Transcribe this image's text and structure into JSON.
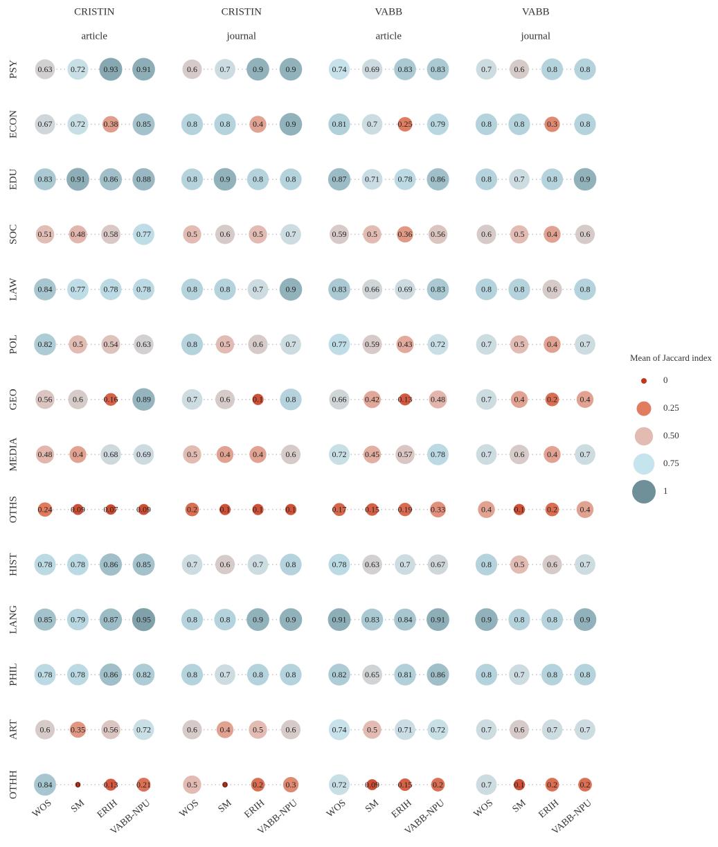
{
  "chart_data": {
    "type": "bubble",
    "facets": [
      {
        "title": "CRISTIN",
        "subtitle": "article",
        "values": [
          [
            0.63,
            0.72,
            0.93,
            0.91
          ],
          [
            0.67,
            0.72,
            0.38,
            0.85
          ],
          [
            0.83,
            0.91,
            0.86,
            0.88
          ],
          [
            0.51,
            0.48,
            0.58,
            0.77
          ],
          [
            0.84,
            0.77,
            0.78,
            0.78
          ],
          [
            0.82,
            0.5,
            0.54,
            0.63
          ],
          [
            0.56,
            0.6,
            0.16,
            0.89
          ],
          [
            0.48,
            0.4,
            0.68,
            0.69
          ],
          [
            0.24,
            0.09,
            0.07,
            0.09
          ],
          [
            0.78,
            0.78,
            0.86,
            0.85
          ],
          [
            0.85,
            0.79,
            0.87,
            0.95
          ],
          [
            0.78,
            0.78,
            0.86,
            0.82
          ],
          [
            0.6,
            0.35,
            0.56,
            0.72
          ],
          [
            0.84,
            0,
            0.13,
            0.21
          ]
        ]
      },
      {
        "title": "CRISTIN",
        "subtitle": "journal",
        "values": [
          [
            0.6,
            0.7,
            0.9,
            0.9
          ],
          [
            0.8,
            0.8,
            0.4,
            0.9
          ],
          [
            0.8,
            0.9,
            0.8,
            0.8
          ],
          [
            0.5,
            0.6,
            0.5,
            0.7
          ],
          [
            0.8,
            0.8,
            0.7,
            0.9
          ],
          [
            0.8,
            0.5,
            0.6,
            0.7
          ],
          [
            0.7,
            0.6,
            0.1,
            0.8
          ],
          [
            0.5,
            0.4,
            0.4,
            0.6
          ],
          [
            0.2,
            0.1,
            0.1,
            0.1
          ],
          [
            0.7,
            0.6,
            0.7,
            0.8
          ],
          [
            0.8,
            0.8,
            0.9,
            0.9
          ],
          [
            0.8,
            0.7,
            0.8,
            0.8
          ],
          [
            0.6,
            0.4,
            0.5,
            0.6
          ],
          [
            0.5,
            0,
            0.2,
            0.3
          ]
        ]
      },
      {
        "title": "VABB",
        "subtitle": "article",
        "values": [
          [
            0.74,
            0.69,
            0.83,
            0.83
          ],
          [
            0.81,
            0.7,
            0.25,
            0.79
          ],
          [
            0.87,
            0.71,
            0.78,
            0.86
          ],
          [
            0.59,
            0.5,
            0.36,
            0.56
          ],
          [
            0.83,
            0.66,
            0.69,
            0.83
          ],
          [
            0.77,
            0.59,
            0.43,
            0.72
          ],
          [
            0.66,
            0.42,
            0.13,
            0.48
          ],
          [
            0.72,
            0.45,
            0.57,
            0.78
          ],
          [
            0.17,
            0.15,
            0.19,
            0.33
          ],
          [
            0.78,
            0.63,
            0.7,
            0.67
          ],
          [
            0.91,
            0.83,
            0.84,
            0.91
          ],
          [
            0.82,
            0.65,
            0.81,
            0.86
          ],
          [
            0.74,
            0.5,
            0.71,
            0.72
          ],
          [
            0.72,
            0.09,
            0.15,
            0.2
          ]
        ]
      },
      {
        "title": "VABB",
        "subtitle": "journal",
        "values": [
          [
            0.7,
            0.6,
            0.8,
            0.8
          ],
          [
            0.8,
            0.8,
            0.3,
            0.8
          ],
          [
            0.8,
            0.7,
            0.8,
            0.9
          ],
          [
            0.6,
            0.5,
            0.4,
            0.6
          ],
          [
            0.8,
            0.8,
            0.6,
            0.8
          ],
          [
            0.7,
            0.5,
            0.4,
            0.7
          ],
          [
            0.7,
            0.4,
            0.2,
            0.4
          ],
          [
            0.7,
            0.6,
            0.4,
            0.7
          ],
          [
            0.4,
            0.1,
            0.2,
            0.4
          ],
          [
            0.8,
            0.5,
            0.6,
            0.7
          ],
          [
            0.9,
            0.8,
            0.8,
            0.9
          ],
          [
            0.8,
            0.7,
            0.8,
            0.8
          ],
          [
            0.7,
            0.6,
            0.7,
            0.7
          ],
          [
            0.7,
            0.1,
            0.2,
            0.2
          ]
        ]
      }
    ],
    "rows": [
      "PSY",
      "ECON",
      "EDU",
      "SOC",
      "LAW",
      "POL",
      "GEO",
      "MEDIA",
      "OTHS",
      "HIST",
      "LANG",
      "PHIL",
      "ART",
      "OTHH"
    ],
    "columns": [
      "WOS",
      "SM",
      "ERIH",
      "VABB-NPU"
    ],
    "legend": {
      "title": "Mean of Jaccard index",
      "breaks": [
        0,
        0.25,
        {
          "value": 0.5,
          "label": "0.50"
        },
        0.75,
        1
      ],
      "colors": [
        "#c4351d",
        "#e07d60",
        "#e2bbb3",
        "#c6e4ed",
        "#6f9099"
      ]
    }
  }
}
